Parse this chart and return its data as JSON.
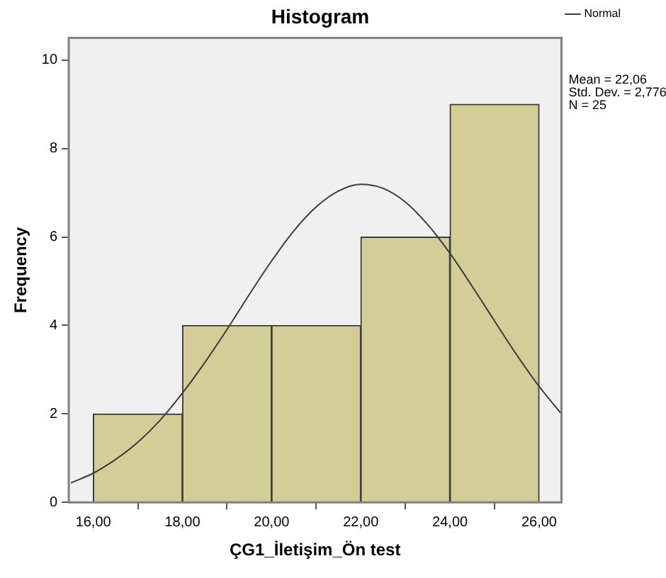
{
  "chart_data": {
    "type": "histogram",
    "title": "Histogram",
    "xlabel": "ÇG1_İletişim_Ön test",
    "ylabel": "Frequency",
    "bins": [
      16,
      18,
      20,
      22,
      24,
      26
    ],
    "values": [
      2,
      4,
      4,
      6,
      9
    ],
    "color": "#d3ce97",
    "series": [
      {
        "name": "Normal",
        "type": "line",
        "color": "#3c3c3c",
        "marker": "none",
        "x": [
          15.5,
          16,
          16.5,
          17,
          17.5,
          18,
          18.5,
          19,
          19.5,
          20,
          20.5,
          21,
          21.5,
          22,
          22.5,
          23,
          23.5,
          24,
          24.5,
          25,
          25.5,
          26,
          26.5
        ],
        "values": [
          0.44,
          0.66,
          0.97,
          1.36,
          1.86,
          2.47,
          3.16,
          3.91,
          4.7,
          5.46,
          6.14,
          6.68,
          7.04,
          7.19,
          7.1,
          6.79,
          6.28,
          5.63,
          4.88,
          4.1,
          3.33,
          2.62,
          2.0
        ]
      }
    ],
    "xlim": [
      15.45,
      26.5
    ],
    "ylim": [
      0,
      10.5
    ],
    "xticks": [
      {
        "value": 16,
        "label": "16,00"
      },
      {
        "value": 18,
        "label": "18,00"
      },
      {
        "value": 20,
        "label": "20,00"
      },
      {
        "value": 22,
        "label": "22,00"
      },
      {
        "value": 24,
        "label": "24,00"
      },
      {
        "value": 26,
        "label": "26,00"
      }
    ],
    "yticks": [
      0,
      2,
      4,
      6,
      8,
      10
    ],
    "annotations": [
      "Mean = 22,06\nStd. Dev. = 2,776\nN = 25"
    ],
    "legend": "top right",
    "grid": false
  }
}
